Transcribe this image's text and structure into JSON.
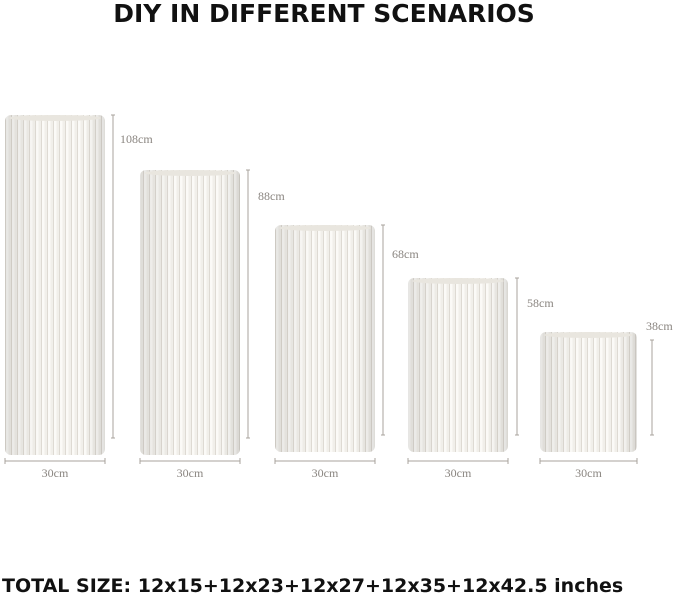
{
  "title": "DIY IN DIFFERENT SCENARIOS",
  "pillars": [
    {
      "height": "108cm",
      "width": "30cm"
    },
    {
      "height": "88cm",
      "width": "30cm"
    },
    {
      "height": "68cm",
      "width": "30cm"
    },
    {
      "height": "58cm",
      "width": "30cm"
    },
    {
      "height": "38cm",
      "width": "30cm"
    }
  ],
  "footer": "TOTAL SIZE: 12x15+12x23+12x27+12x35+12x42.5 inches"
}
